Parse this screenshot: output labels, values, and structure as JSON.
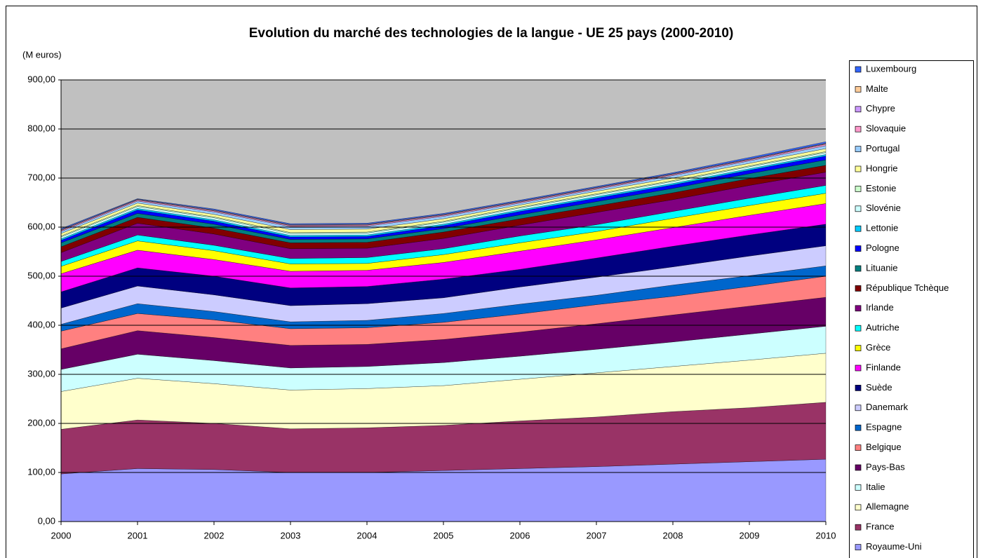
{
  "chart_data": {
    "type": "stacked_area",
    "title": "Evolution du marché des technologies de la langue - UE 25 pays (2000-2010)",
    "y_label": "(M euros)",
    "categories": [
      "2000",
      "2001",
      "2002",
      "2003",
      "2004",
      "2005",
      "2006",
      "2007",
      "2008",
      "2009",
      "2010"
    ],
    "ylim": [
      0,
      900
    ],
    "yticks": [
      {
        "value": 0,
        "label": "0,00"
      },
      {
        "value": 100,
        "label": "100,00"
      },
      {
        "value": 200,
        "label": "200,00"
      },
      {
        "value": 300,
        "label": "300,00"
      },
      {
        "value": 400,
        "label": "400,00"
      },
      {
        "value": 500,
        "label": "500,00"
      },
      {
        "value": 600,
        "label": "600,00"
      },
      {
        "value": 700,
        "label": "700,00"
      },
      {
        "value": 800,
        "label": "800,00"
      },
      {
        "value": 900,
        "label": "900,00"
      }
    ],
    "grid": true,
    "legend": "right",
    "plot_background": "#c0c0c0",
    "series": [
      {
        "name": "Royaume-Uni",
        "color": "#9999ff",
        "values": [
          97,
          108,
          106,
          100,
          100,
          104,
          108,
          112,
          117,
          122,
          127
        ]
      },
      {
        "name": "France",
        "color": "#993366",
        "values": [
          91,
          99,
          94,
          89,
          91,
          92,
          97,
          101,
          107,
          110,
          116
        ]
      },
      {
        "name": "Allemagne",
        "color": "#ffffcc",
        "values": [
          77,
          85,
          81,
          79,
          80,
          81,
          85,
          90,
          92,
          97,
          100
        ]
      },
      {
        "name": "Italie",
        "color": "#ccffff",
        "values": [
          45,
          49,
          47,
          45,
          45,
          47,
          47,
          48,
          50,
          53,
          55
        ]
      },
      {
        "name": "Pays-Bas",
        "color": "#660066",
        "values": [
          42,
          48,
          47,
          46,
          45,
          47,
          49,
          52,
          55,
          57,
          59
        ]
      },
      {
        "name": "Belgique",
        "color": "#ff8080",
        "values": [
          36,
          35,
          36,
          34,
          34,
          35,
          37,
          39,
          38,
          40,
          43
        ]
      },
      {
        "name": "Espagne",
        "color": "#0066cc",
        "values": [
          14,
          20,
          17,
          14,
          15,
          18,
          20,
          19,
          23,
          22,
          21
        ]
      },
      {
        "name": "Danemark",
        "color": "#ccccff",
        "values": [
          33,
          36,
          34,
          33,
          34,
          32,
          35,
          37,
          37,
          40,
          41
        ]
      },
      {
        "name": "Suède",
        "color": "#000080",
        "values": [
          33,
          37,
          38,
          36,
          35,
          38,
          36,
          39,
          42,
          43,
          44
        ]
      },
      {
        "name": "Finlande",
        "color": "#ff00ff",
        "values": [
          37,
          36,
          34,
          34,
          33,
          34,
          37,
          37,
          38,
          40,
          42
        ]
      },
      {
        "name": "Grèce",
        "color": "#ffff00",
        "values": [
          15,
          19,
          18,
          15,
          14,
          16,
          17,
          17,
          19,
          20,
          21
        ]
      },
      {
        "name": "Autriche",
        "color": "#00ffff",
        "values": [
          10,
          12,
          11,
          11,
          12,
          12,
          14,
          14,
          14,
          15,
          16
        ]
      },
      {
        "name": "Irlande",
        "color": "#800080",
        "values": [
          18,
          24,
          23,
          20,
          19,
          21,
          22,
          25,
          24,
          26,
          27
        ]
      },
      {
        "name": "République Tchèque",
        "color": "#800000",
        "values": [
          12,
          12,
          12,
          12,
          12,
          13,
          13,
          13,
          14,
          14,
          14
        ]
      },
      {
        "name": "Lituanie",
        "color": "#008080",
        "values": [
          8,
          8,
          8,
          7,
          7,
          7,
          8,
          9,
          9,
          10,
          11
        ]
      },
      {
        "name": "Pologne",
        "color": "#0000ff",
        "values": [
          5,
          7,
          6,
          5,
          5,
          6,
          7,
          7,
          7,
          7,
          8
        ]
      },
      {
        "name": "Lettonie",
        "color": "#00ccff",
        "values": [
          3,
          3,
          3,
          3,
          3,
          3,
          3,
          3,
          3,
          3,
          3
        ]
      },
      {
        "name": "Slovénie",
        "color": "#ccffff",
        "values": [
          4,
          4,
          4,
          4,
          4,
          4,
          4,
          4,
          4,
          4,
          4
        ]
      },
      {
        "name": "Estonie",
        "color": "#ccffcc",
        "values": [
          2,
          2,
          2,
          2,
          2,
          2,
          2,
          2,
          2,
          2,
          2
        ]
      },
      {
        "name": "Hongrie",
        "color": "#ffff99",
        "values": [
          5,
          5,
          5,
          6,
          6,
          5,
          4,
          5,
          5,
          5,
          6
        ]
      },
      {
        "name": "Portugal",
        "color": "#99ccff",
        "values": [
          4,
          4,
          5,
          6,
          6,
          5,
          4,
          4,
          5,
          5,
          6
        ]
      },
      {
        "name": "Slovaquie",
        "color": "#ff99cc",
        "values": [
          2,
          2,
          2,
          2,
          2,
          2,
          2,
          2,
          2,
          2,
          3
        ]
      },
      {
        "name": "Chypre",
        "color": "#cc99ff",
        "values": [
          1,
          1,
          1,
          1,
          1,
          1,
          1,
          1,
          1,
          1,
          1
        ]
      },
      {
        "name": "Malte",
        "color": "#ffcc99",
        "values": [
          1,
          1,
          1,
          1,
          1,
          1,
          1,
          1,
          1,
          1,
          1
        ]
      },
      {
        "name": "Luxembourg",
        "color": "#3366ff",
        "values": [
          2,
          1,
          2,
          2,
          2,
          2,
          2,
          2,
          2,
          3,
          3
        ]
      }
    ]
  }
}
